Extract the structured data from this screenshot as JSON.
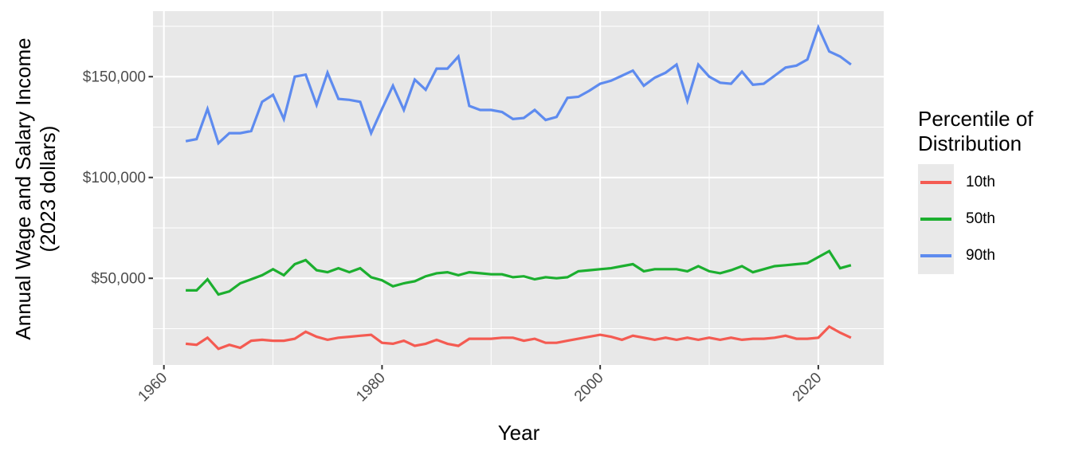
{
  "figure": {
    "y_axis": {
      "title_line1": "Annual Wage and Salary Income",
      "title_line2": "(2023 dollars)"
    },
    "x_axis": {
      "title": "Year"
    },
    "legend": {
      "title_line1": "Percentile of",
      "title_line2": "Distribution",
      "items": [
        {
          "label": "10th",
          "color": "#F45B52"
        },
        {
          "label": "50th",
          "color": "#1CAF2F"
        },
        {
          "label": "90th",
          "color": "#5E8BEF"
        }
      ]
    }
  },
  "colors": {
    "panel_bg": "#E8E8E8",
    "grid": "#FFFFFF",
    "tick_text": "#4D4D4D",
    "tick_mark": "#333333"
  },
  "chart_data": {
    "type": "line",
    "title": "",
    "xlabel": "Year",
    "ylabel": "Annual Wage and Salary Income (2023 dollars)",
    "legend_title": "Percentile of Distribution",
    "legend_position": "right",
    "grid": true,
    "x_range": [
      1959,
      2026
    ],
    "y_range": [
      7000,
      182500
    ],
    "x_ticks": [
      {
        "value": 1960,
        "label": "1960"
      },
      {
        "value": 1980,
        "label": "1980"
      },
      {
        "value": 2000,
        "label": "2000"
      },
      {
        "value": 2020,
        "label": "2020"
      }
    ],
    "x_minor": [
      1970,
      1990,
      2010
    ],
    "y_ticks": [
      {
        "value": 50000,
        "label": "$50,000"
      },
      {
        "value": 100000,
        "label": "$100,000"
      },
      {
        "value": 150000,
        "label": "$150,000"
      }
    ],
    "y_minor": [
      25000,
      75000,
      125000,
      175000
    ],
    "x": [
      1962,
      1963,
      1964,
      1965,
      1966,
      1967,
      1968,
      1969,
      1970,
      1971,
      1972,
      1973,
      1974,
      1975,
      1976,
      1977,
      1978,
      1979,
      1980,
      1981,
      1982,
      1983,
      1984,
      1985,
      1986,
      1987,
      1988,
      1989,
      1990,
      1991,
      1992,
      1993,
      1994,
      1995,
      1996,
      1997,
      1998,
      1999,
      2000,
      2001,
      2002,
      2003,
      2004,
      2005,
      2006,
      2007,
      2008,
      2009,
      2010,
      2011,
      2012,
      2013,
      2014,
      2015,
      2016,
      2017,
      2018,
      2019,
      2020,
      2021,
      2022,
      2023
    ],
    "series": [
      {
        "name": "10th",
        "color": "#F45B52",
        "values": [
          17500,
          17000,
          20500,
          15000,
          17000,
          15500,
          19000,
          19500,
          19000,
          19000,
          20000,
          23500,
          21000,
          19500,
          20500,
          21000,
          21500,
          22000,
          18000,
          17500,
          19000,
          16500,
          17500,
          19500,
          17500,
          16500,
          20000,
          20000,
          20000,
          20500,
          20500,
          19000,
          20000,
          18000,
          18000,
          19000,
          20000,
          21000,
          22000,
          21000,
          19500,
          21500,
          20500,
          19500,
          20500,
          19500,
          20500,
          19500,
          20500,
          19500,
          20500,
          19500,
          20000,
          20000,
          20500,
          21500,
          20000,
          20000,
          20500,
          26000,
          23000,
          20500
        ]
      },
      {
        "name": "50th",
        "color": "#1CAF2F",
        "values": [
          44000,
          44000,
          49500,
          42000,
          43500,
          47500,
          49500,
          51500,
          54500,
          51500,
          57000,
          59000,
          54000,
          53000,
          55000,
          53000,
          55000,
          50500,
          49000,
          46000,
          47500,
          48500,
          51000,
          52500,
          53000,
          51500,
          53000,
          52500,
          52000,
          52000,
          50500,
          51000,
          49500,
          50500,
          50000,
          50500,
          53500,
          54000,
          54500,
          55000,
          56000,
          57000,
          53500,
          54500,
          54500,
          54500,
          53500,
          56000,
          53500,
          52500,
          54000,
          56000,
          53000,
          54500,
          56000,
          56500,
          57000,
          57500,
          60500,
          63500,
          55000,
          56500
        ]
      },
      {
        "name": "90th",
        "color": "#5E8BEF",
        "values": [
          118000,
          119000,
          134000,
          117000,
          122000,
          122000,
          123000,
          137500,
          141000,
          129000,
          150000,
          151000,
          136000,
          152000,
          139000,
          138500,
          137500,
          122000,
          134000,
          145500,
          133500,
          148500,
          143500,
          154000,
          154000,
          160000,
          135500,
          133500,
          133500,
          132500,
          129000,
          129500,
          133500,
          128500,
          130000,
          139500,
          140000,
          143000,
          146500,
          148000,
          150500,
          153000,
          145500,
          149500,
          152000,
          156000,
          138000,
          156000,
          150000,
          147000,
          146500,
          152500,
          146000,
          146500,
          150500,
          154500,
          155500,
          158500,
          174500,
          162500,
          160000,
          156000
        ]
      }
    ]
  }
}
